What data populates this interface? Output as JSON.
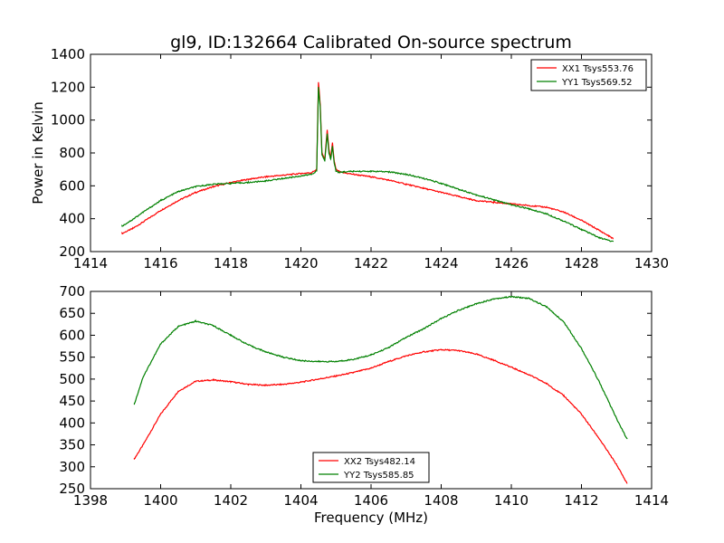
{
  "title": "gl9, ID:132664 Calibrated On-source spectrum",
  "chart_data": [
    {
      "type": "line",
      "title": "gl9, ID:132664 Calibrated On-source spectrum",
      "xlabel": "",
      "ylabel": "Power in Kelvin",
      "xlim": [
        1414,
        1430
      ],
      "ylim": [
        200,
        1400
      ],
      "xticks": [
        "1414",
        "1416",
        "1418",
        "1420",
        "1422",
        "1424",
        "1426",
        "1428",
        "1430"
      ],
      "yticks": [
        "200",
        "400",
        "600",
        "800",
        "1000",
        "1200",
        "1400"
      ],
      "grid": false,
      "legend_position": "top-right",
      "series": [
        {
          "name": "XX1 Tsys553.76",
          "color": "#ff0000",
          "x": [
            1414.9,
            1415.2,
            1415.5,
            1416.0,
            1416.5,
            1417.0,
            1417.5,
            1418.0,
            1418.5,
            1419.0,
            1419.5,
            1420.0,
            1420.3,
            1420.45,
            1420.5,
            1420.55,
            1420.6,
            1420.68,
            1420.75,
            1420.8,
            1420.85,
            1420.9,
            1420.95,
            1421.0,
            1421.1,
            1421.2,
            1421.5,
            1422.0,
            1422.5,
            1423.0,
            1423.5,
            1424.0,
            1424.5,
            1425.0,
            1425.5,
            1426.0,
            1426.5,
            1427.0,
            1427.5,
            1428.0,
            1428.5,
            1428.9
          ],
          "values": [
            310,
            340,
            380,
            450,
            510,
            560,
            595,
            620,
            640,
            655,
            665,
            675,
            680,
            700,
            1230,
            1100,
            800,
            760,
            940,
            820,
            770,
            860,
            750,
            700,
            685,
            680,
            670,
            655,
            635,
            610,
            585,
            560,
            535,
            510,
            500,
            490,
            480,
            470,
            440,
            390,
            330,
            280
          ]
        },
        {
          "name": "YY1 Tsys569.52",
          "color": "#008000",
          "x": [
            1414.9,
            1415.2,
            1415.5,
            1416.0,
            1416.5,
            1417.0,
            1417.5,
            1418.0,
            1418.5,
            1419.0,
            1419.5,
            1420.0,
            1420.3,
            1420.45,
            1420.5,
            1420.55,
            1420.6,
            1420.68,
            1420.75,
            1420.8,
            1420.85,
            1420.9,
            1420.95,
            1421.0,
            1421.1,
            1421.2,
            1421.5,
            1422.0,
            1422.5,
            1423.0,
            1423.5,
            1424.0,
            1424.5,
            1425.0,
            1425.5,
            1426.0,
            1426.5,
            1427.0,
            1427.5,
            1428.0,
            1428.5,
            1428.9
          ],
          "values": [
            355,
            395,
            440,
            510,
            565,
            595,
            610,
            615,
            620,
            630,
            645,
            660,
            670,
            690,
            1200,
            1080,
            790,
            750,
            920,
            800,
            760,
            840,
            740,
            690,
            680,
            685,
            688,
            688,
            685,
            670,
            645,
            615,
            580,
            545,
            515,
            485,
            460,
            430,
            385,
            335,
            285,
            260
          ]
        }
      ]
    },
    {
      "type": "line",
      "title": "",
      "xlabel": "Frequency (MHz)",
      "ylabel": "",
      "xlim": [
        1398,
        1414
      ],
      "ylim": [
        250,
        700
      ],
      "xticks": [
        "1398",
        "1400",
        "1402",
        "1404",
        "1406",
        "1408",
        "1410",
        "1412",
        "1414"
      ],
      "yticks": [
        "250",
        "300",
        "350",
        "400",
        "450",
        "500",
        "550",
        "600",
        "650",
        "700"
      ],
      "grid": false,
      "legend_position": "lower-center",
      "series": [
        {
          "name": "XX2 Tsys482.14",
          "color": "#ff0000",
          "x": [
            1399.25,
            1399.5,
            1400.0,
            1400.5,
            1401.0,
            1401.5,
            1402.0,
            1402.5,
            1403.0,
            1403.5,
            1404.0,
            1404.5,
            1405.0,
            1405.5,
            1406.0,
            1406.5,
            1407.0,
            1407.5,
            1408.0,
            1408.5,
            1409.0,
            1409.5,
            1410.0,
            1410.5,
            1411.0,
            1411.5,
            1412.0,
            1412.5,
            1413.0,
            1413.3
          ],
          "values": [
            318,
            350,
            420,
            472,
            495,
            498,
            494,
            488,
            486,
            488,
            493,
            500,
            507,
            515,
            525,
            540,
            553,
            562,
            567,
            565,
            557,
            543,
            527,
            510,
            490,
            462,
            420,
            365,
            305,
            262
          ]
        },
        {
          "name": "YY2 Tsys585.85",
          "color": "#008000",
          "x": [
            1399.25,
            1399.5,
            1400.0,
            1400.5,
            1401.0,
            1401.5,
            1402.0,
            1402.5,
            1403.0,
            1403.5,
            1404.0,
            1404.5,
            1405.0,
            1405.5,
            1406.0,
            1406.5,
            1407.0,
            1407.5,
            1408.0,
            1408.5,
            1409.0,
            1409.5,
            1410.0,
            1410.5,
            1411.0,
            1411.5,
            1412.0,
            1412.5,
            1413.0,
            1413.3
          ],
          "values": [
            443,
            505,
            580,
            620,
            632,
            622,
            600,
            578,
            562,
            550,
            542,
            540,
            540,
            545,
            555,
            572,
            595,
            615,
            638,
            657,
            672,
            683,
            688,
            684,
            665,
            630,
            570,
            495,
            410,
            363
          ]
        }
      ]
    }
  ]
}
